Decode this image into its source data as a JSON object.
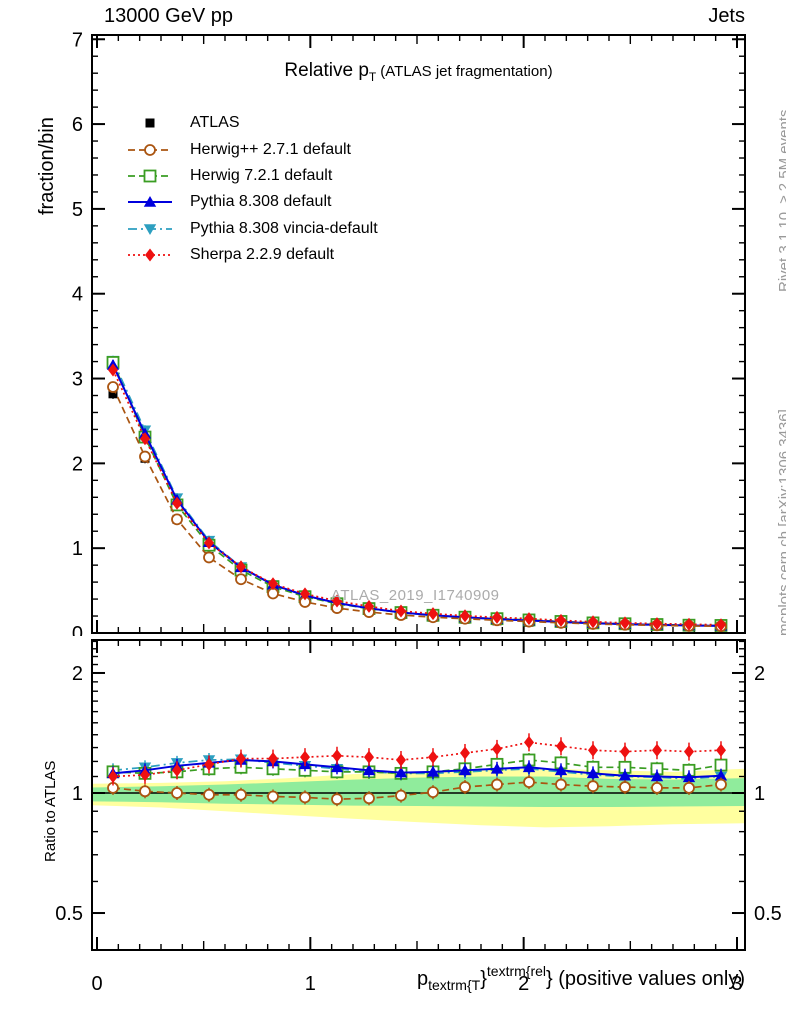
{
  "header": {
    "left": "13000 GeV pp",
    "right": "Jets"
  },
  "title": {
    "prefix": "Relative p",
    "sub": "T",
    "suffix": "(ATLAS jet fragmentation)"
  },
  "side_notes": {
    "right_top": "Rivet 3.1.10, ≥ 2.5M events",
    "right_bottom": "mcplots.cern.ch [arXiv:1306.3436]"
  },
  "watermark": "ATLAS_2019_I1740909",
  "axis": {
    "ylabel_main": "fraction/bin",
    "ylabel_ratio": "Ratio to ATLAS",
    "xlabel": {
      "p": "p",
      "sub": "textrm{T",
      "brace": "}",
      "sup": "textrm{rel",
      "rest": "} (positive values only)"
    }
  },
  "chart_data": [
    {
      "id": "main",
      "type": "line",
      "yscale": "linear",
      "xlim": [
        0,
        3
      ],
      "ylim": [
        0,
        7.05
      ],
      "x_ticks_labeled": [
        0,
        1,
        2,
        3
      ],
      "y_ticks_labeled": [
        0,
        1,
        2,
        3,
        4,
        5,
        6,
        7
      ],
      "x": [
        0.075,
        0.225,
        0.375,
        0.525,
        0.675,
        0.825,
        0.975,
        1.125,
        1.275,
        1.425,
        1.575,
        1.725,
        1.875,
        2.025,
        2.175,
        2.325,
        2.475,
        2.625,
        2.775,
        2.925
      ],
      "series": [
        {
          "key": "atlas",
          "name": "ATLAS",
          "color": "#000000",
          "marker": "square-filled",
          "line": "none",
          "values": [
            2.82,
            2.06,
            1.34,
            0.9,
            0.64,
            0.475,
            0.375,
            0.305,
            0.255,
            0.215,
            0.185,
            0.162,
            0.143,
            0.127,
            0.114,
            0.103,
            0.094,
            0.087,
            0.081,
            0.076
          ]
        },
        {
          "key": "herwigpp",
          "name": "Herwig++ 2.7.1 default",
          "color": "#aa5511",
          "marker": "circle-open",
          "line": "dashed",
          "values": [
            2.9,
            2.08,
            1.34,
            0.891,
            0.634,
            0.466,
            0.366,
            0.294,
            0.247,
            0.212,
            0.186,
            0.168,
            0.15,
            0.135,
            0.12,
            0.107,
            0.097,
            0.09,
            0.083,
            0.08
          ]
        },
        {
          "key": "herwig7",
          "name": "Herwig 7.2.1 default",
          "color": "#3a9d23",
          "marker": "square-open",
          "line": "dashed",
          "values": [
            3.19,
            2.31,
            1.51,
            1.035,
            0.742,
            0.546,
            0.428,
            0.345,
            0.288,
            0.241,
            0.209,
            0.186,
            0.169,
            0.154,
            0.136,
            0.119,
            0.109,
            0.1,
            0.092,
            0.089
          ]
        },
        {
          "key": "pythia",
          "name": "Pythia 8.308 default",
          "color": "#0000dd",
          "marker": "triangle-up",
          "line": "solid",
          "values": [
            3.16,
            2.35,
            1.57,
            1.071,
            0.774,
            0.57,
            0.443,
            0.354,
            0.291,
            0.242,
            0.209,
            0.185,
            0.164,
            0.147,
            0.13,
            0.115,
            0.104,
            0.096,
            0.089,
            0.084
          ]
        },
        {
          "key": "vincia",
          "name": "Pythia 8.308 vincia-default",
          "color": "#2d9fc0",
          "marker": "triangle-down",
          "line": "dashdot",
          "values": [
            3.21,
            2.39,
            1.59,
            1.089,
            0.778,
            0.565,
            0.439,
            0.351,
            0.288,
            0.241,
            0.207,
            0.183,
            0.163,
            0.146,
            0.129,
            0.114,
            0.103,
            0.095,
            0.088,
            0.084
          ]
        },
        {
          "key": "sherpa",
          "name": "Sherpa 2.2.9 default",
          "color": "#ee1111",
          "marker": "diamond",
          "line": "dotted",
          "values": [
            3.1,
            2.29,
            1.53,
            1.062,
            0.781,
            0.58,
            0.461,
            0.378,
            0.314,
            0.26,
            0.228,
            0.204,
            0.184,
            0.17,
            0.149,
            0.132,
            0.119,
            0.111,
            0.103,
            0.097
          ]
        }
      ]
    },
    {
      "id": "ratio",
      "type": "line",
      "yscale": "log",
      "xlim": [
        0,
        3
      ],
      "ylim": [
        0.404,
        2.42
      ],
      "x_ticks_labeled": [
        0,
        1,
        2,
        3
      ],
      "y_ticks_labeled": [
        2,
        1,
        0.5
      ],
      "reference_line": 1,
      "x": [
        0.075,
        0.225,
        0.375,
        0.525,
        0.675,
        0.825,
        0.975,
        1.125,
        1.275,
        1.425,
        1.575,
        1.725,
        1.875,
        2.025,
        2.175,
        2.325,
        2.475,
        2.625,
        2.775,
        2.925
      ],
      "bands": {
        "inner_color": "#90ec9c",
        "outer_color": "#ffff9f",
        "xs": [
          0,
          0.3,
          0.6,
          0.9,
          1.2,
          1.5,
          1.8,
          2.1,
          2.4,
          2.7,
          3
        ],
        "inner_lo": [
          0.953,
          0.948,
          0.94,
          0.935,
          0.93,
          0.928,
          0.925,
          0.922,
          0.922,
          0.925,
          0.928
        ],
        "inner_hi": [
          1.032,
          1.04,
          1.05,
          1.065,
          1.08,
          1.093,
          1.1,
          1.1,
          1.085,
          1.08,
          1.09
        ],
        "outer_lo": [
          0.932,
          0.92,
          0.9,
          0.88,
          0.862,
          0.845,
          0.83,
          0.82,
          0.825,
          0.835,
          0.84
        ],
        "outer_hi": [
          1.055,
          1.06,
          1.07,
          1.09,
          1.115,
          1.13,
          1.145,
          1.15,
          1.14,
          1.13,
          1.15
        ]
      },
      "series": [
        {
          "key": "herwigpp",
          "name": "Herwig++ 2.7.1 default",
          "color": "#aa5511",
          "marker": "circle-open",
          "line": "dashed",
          "values": [
            1.03,
            1.01,
            1.0,
            0.99,
            0.99,
            0.98,
            0.975,
            0.965,
            0.97,
            0.985,
            1.005,
            1.035,
            1.05,
            1.065,
            1.05,
            1.04,
            1.035,
            1.03,
            1.03,
            1.05
          ]
        },
        {
          "key": "herwig7",
          "name": "Herwig 7.2.1 default",
          "color": "#3a9d23",
          "marker": "square-open",
          "line": "dashed",
          "values": [
            1.13,
            1.12,
            1.13,
            1.15,
            1.16,
            1.15,
            1.14,
            1.13,
            1.13,
            1.12,
            1.13,
            1.15,
            1.18,
            1.21,
            1.19,
            1.16,
            1.16,
            1.15,
            1.14,
            1.175
          ]
        },
        {
          "key": "pythia",
          "name": "Pythia 8.308 default",
          "color": "#0000dd",
          "marker": "triangle-up",
          "line": "solid",
          "values": [
            1.12,
            1.14,
            1.17,
            1.19,
            1.21,
            1.2,
            1.18,
            1.16,
            1.14,
            1.125,
            1.13,
            1.14,
            1.15,
            1.16,
            1.14,
            1.12,
            1.105,
            1.1,
            1.095,
            1.105
          ]
        },
        {
          "key": "vincia",
          "name": "Pythia 8.308 vincia-default",
          "color": "#2d9fc0",
          "marker": "triangle-down",
          "line": "dashdot",
          "values": [
            1.14,
            1.16,
            1.19,
            1.21,
            1.215,
            1.19,
            1.17,
            1.15,
            1.13,
            1.12,
            1.12,
            1.13,
            1.14,
            1.15,
            1.13,
            1.11,
            1.1,
            1.095,
            1.085,
            1.1
          ]
        },
        {
          "key": "sherpa",
          "name": "Sherpa 2.2.9 default",
          "color": "#ee1111",
          "marker": "diamond",
          "line": "dotted",
          "values": [
            1.1,
            1.11,
            1.14,
            1.18,
            1.22,
            1.22,
            1.23,
            1.24,
            1.23,
            1.21,
            1.23,
            1.26,
            1.29,
            1.34,
            1.31,
            1.28,
            1.27,
            1.28,
            1.27,
            1.28
          ]
        }
      ]
    }
  ]
}
